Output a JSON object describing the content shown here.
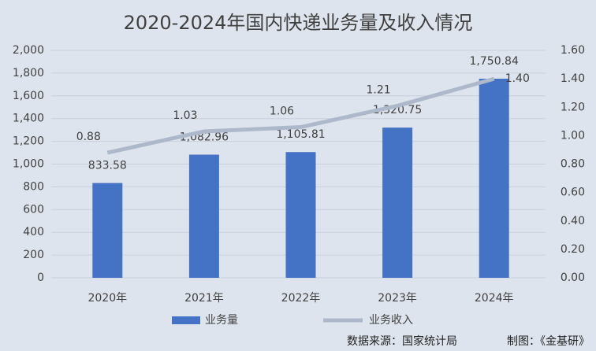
{
  "chart_data": {
    "type": "bar",
    "title": "2020-2024年国内快递业务量及收入情况",
    "categories": [
      "2020年",
      "2021年",
      "2022年",
      "2023年",
      "2024年"
    ],
    "series": [
      {
        "name": "业务量",
        "type": "bar",
        "color": "#4472c4",
        "values": [
          833.58,
          1082.96,
          1105.81,
          1320.75,
          1750.84
        ],
        "value_labels": [
          "833.58",
          "1,082.96",
          "1,105.81",
          "1,320.75",
          "1,750.84"
        ]
      },
      {
        "name": "业务收入",
        "type": "line",
        "axis": "y2",
        "color": "#adb9ca",
        "values": [
          0.88,
          1.03,
          1.06,
          1.21,
          1.4
        ],
        "value_labels": [
          "0.88",
          "1.03",
          "1.06",
          "1.21",
          "1.40"
        ]
      }
    ],
    "ylim": [
      0,
      2000
    ],
    "yticks": [
      0,
      200,
      400,
      600,
      800,
      {
        "value": 1000,
        "label": "1,000"
      },
      {
        "value": 1200,
        "label": "1,200"
      },
      {
        "value": 1400,
        "label": "1,400"
      },
      {
        "value": 1600,
        "label": "1,600"
      },
      {
        "value": 1800,
        "label": "1,800"
      },
      {
        "value": 2000,
        "label": "2,000"
      }
    ],
    "y2lim": [
      0,
      1.6
    ],
    "y2ticks": [
      {
        "value": 0,
        "label": "0.00"
      },
      {
        "value": 0.2,
        "label": "0.20"
      },
      {
        "value": 0.4,
        "label": "0.40"
      },
      {
        "value": 0.6,
        "label": "0.60"
      },
      {
        "value": 0.8,
        "label": "0.80"
      },
      {
        "value": 1,
        "label": "1.00"
      },
      {
        "value": 1.2,
        "label": "1.20"
      },
      {
        "value": 1.4,
        "label": "1.40"
      },
      {
        "value": 1.6,
        "label": "1.60"
      }
    ],
    "grid": true,
    "legend": "bottom",
    "source": "数据来源：国家统计局",
    "credit": "制图：《金基研》"
  }
}
